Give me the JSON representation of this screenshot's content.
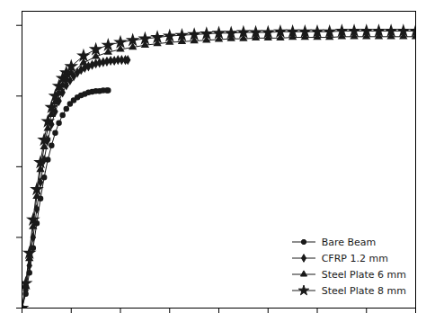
{
  "chart_data": {
    "type": "line",
    "color": "#1a1a1a",
    "series": [
      {
        "name": "Bare Beam",
        "marker": "circle",
        "x": [
          0.0,
          0.15,
          0.3,
          0.45,
          0.6,
          0.75,
          0.9,
          1.05,
          1.2,
          1.35,
          1.5,
          1.65,
          1.8,
          1.95,
          2.1,
          2.25,
          2.4,
          2.55,
          2.7,
          2.85,
          3.0,
          3.15,
          3.3,
          3.45,
          3.5
        ],
        "values": [
          0,
          20,
          50,
          85,
          120,
          155,
          185,
          210,
          230,
          248,
          262,
          273,
          282,
          289,
          294,
          298,
          301,
          303,
          305,
          306,
          307,
          307,
          308,
          308,
          308
        ]
      },
      {
        "name": "CFRP 1.2 mm",
        "marker": "diamond",
        "x": [
          0.0,
          0.15,
          0.3,
          0.45,
          0.6,
          0.75,
          0.9,
          1.05,
          1.2,
          1.35,
          1.5,
          1.65,
          1.8,
          1.95,
          2.1,
          2.25,
          2.4,
          2.55,
          2.7,
          2.85,
          3.0,
          3.15,
          3.3,
          3.45,
          3.6,
          3.75,
          3.9,
          4.05,
          4.2,
          4.3
        ],
        "values": [
          0,
          25,
          60,
          100,
          140,
          178,
          210,
          238,
          260,
          278,
          293,
          305,
          315,
          322,
          328,
          333,
          337,
          340,
          342,
          344,
          346,
          347,
          348,
          349,
          350,
          350,
          351,
          351,
          351,
          351
        ]
      },
      {
        "name": "Steel Plate 6 mm",
        "marker": "triangle",
        "x": [
          0.0,
          0.15,
          0.3,
          0.45,
          0.6,
          0.75,
          0.9,
          1.05,
          1.2,
          1.35,
          1.5,
          1.65,
          1.8,
          2.0,
          2.5,
          3.0,
          3.5,
          4.0,
          4.5,
          5.0,
          5.5,
          6.0,
          6.5,
          7.0,
          7.5,
          8.0,
          8.5,
          9.0,
          9.5,
          10.0,
          10.5,
          11.0,
          11.5,
          12.0,
          12.5,
          13.0,
          13.5,
          14.0,
          14.5,
          15.0,
          15.5,
          16.0
        ],
        "values": [
          0,
          30,
          70,
          115,
          158,
          196,
          228,
          254,
          274,
          291,
          304,
          315,
          323,
          332,
          347,
          356,
          362,
          366,
          369,
          372,
          374,
          376,
          377,
          378,
          379,
          380,
          381,
          381,
          382,
          382,
          382,
          383,
          383,
          383,
          383,
          384,
          384,
          384,
          384,
          384,
          384,
          384
        ]
      },
      {
        "name": "Steel Plate 8 mm",
        "marker": "star",
        "x": [
          0.0,
          0.15,
          0.3,
          0.45,
          0.6,
          0.75,
          0.9,
          1.05,
          1.2,
          1.35,
          1.5,
          1.65,
          1.8,
          2.0,
          2.5,
          3.0,
          3.5,
          4.0,
          4.5,
          5.0,
          5.5,
          6.0,
          6.5,
          7.0,
          7.5,
          8.0,
          8.5,
          9.0,
          9.5,
          10.0,
          10.5,
          11.0,
          11.5,
          12.0,
          12.5,
          13.0,
          13.5,
          14.0,
          14.5,
          15.0,
          15.5,
          16.0
        ],
        "values": [
          0,
          35,
          78,
          125,
          168,
          206,
          238,
          264,
          284,
          300,
          314,
          325,
          333,
          342,
          357,
          366,
          372,
          376,
          379,
          381,
          383,
          385,
          386,
          387,
          388,
          389,
          389,
          390,
          390,
          390,
          391,
          391,
          391,
          391,
          391,
          392,
          392,
          392,
          392,
          392,
          392,
          392
        ]
      }
    ],
    "xlim": [
      0,
      16
    ],
    "ylim": [
      0,
      420
    ],
    "xticks": [
      0,
      2,
      4,
      6,
      8,
      10,
      12,
      14,
      16
    ],
    "yticks": [
      0,
      100,
      200,
      300,
      400
    ],
    "tick_labels": false,
    "grid": false,
    "legend": "lower right"
  }
}
